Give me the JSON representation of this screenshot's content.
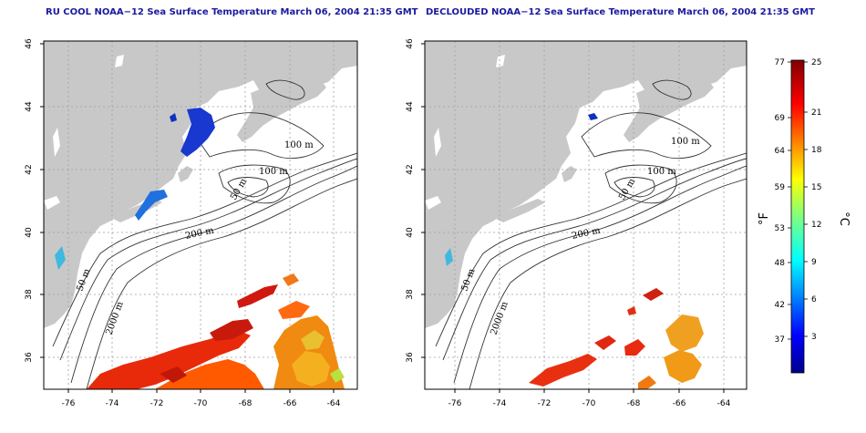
{
  "panels": [
    {
      "title": "RU COOL NOAA−12 Sea Surface Temperature March 06, 2004 21:35 GMT"
    },
    {
      "title": "DECLOUDED NOAA−12 Sea Surface Temperature March 06, 2004 21:35 GMT"
    }
  ],
  "map": {
    "lon_ticks": [
      "-76",
      "-74",
      "-72",
      "-70",
      "-68",
      "-66",
      "-64"
    ],
    "lat_ticks": [
      "46",
      "44",
      "42",
      "40",
      "38",
      "36"
    ],
    "contour_labels": [
      "100 m",
      "100 m",
      "50 m",
      "200 m",
      "50 m",
      "2000 m"
    ],
    "colors": {
      "land": "#c8c8c8",
      "ocean": "#ffffff",
      "grid": "#a0a0a0"
    }
  },
  "colorbar": {
    "fahrenheit_labels": [
      "77",
      "69",
      "64",
      "59",
      "53",
      "48",
      "42",
      "37"
    ],
    "celsius_labels": [
      "25",
      "21",
      "18",
      "15",
      "12",
      "9",
      "6",
      "3"
    ],
    "fahrenheit_unit": "°F",
    "celsius_unit": "°C",
    "range_c": [
      0,
      25
    ]
  }
}
